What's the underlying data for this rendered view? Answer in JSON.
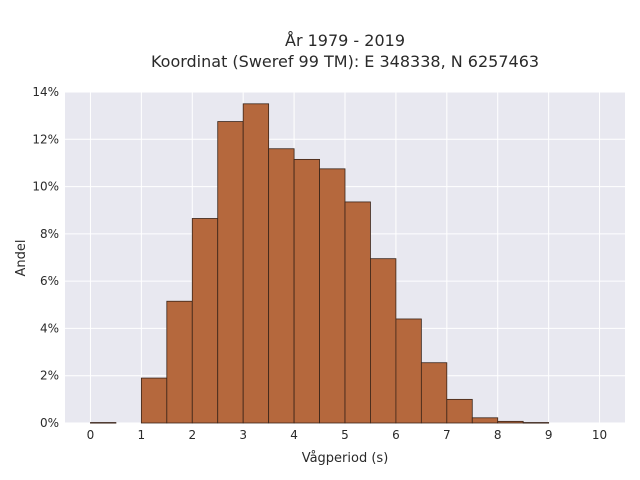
{
  "chart_data": {
    "type": "bar",
    "title_line1": "År 1979 - 2019",
    "title_line2": "Koordinat (Sweref 99 TM): E 348338, N 6257463",
    "xlabel": "Vågperiod (s)",
    "ylabel": "Andel",
    "xlim": [
      -0.5,
      10.5
    ],
    "ylim": [
      0,
      14
    ],
    "x_ticks": [
      0,
      1,
      2,
      3,
      4,
      5,
      6,
      7,
      8,
      9,
      10
    ],
    "x_tick_labels": [
      "0",
      "1",
      "2",
      "3",
      "4",
      "5",
      "6",
      "7",
      "8",
      "9",
      "10"
    ],
    "y_ticks": [
      0,
      2,
      4,
      6,
      8,
      10,
      12,
      14
    ],
    "y_tick_labels": [
      "0%",
      "2%",
      "4%",
      "6%",
      "8%",
      "10%",
      "12%",
      "14%"
    ],
    "bin_width": 0.5,
    "bin_starts": [
      0,
      0.5,
      1,
      1.5,
      2,
      2.5,
      3,
      3.5,
      4,
      4.5,
      5,
      5.5,
      6,
      6.5,
      7,
      7.5,
      8,
      8.5,
      9,
      9.5
    ],
    "values": [
      0.02,
      0,
      1.9,
      5.15,
      8.65,
      12.75,
      13.5,
      11.6,
      11.15,
      10.75,
      9.35,
      6.95,
      4.4,
      2.55,
      1.0,
      0.22,
      0.07,
      0.02,
      0,
      0
    ],
    "grid": true,
    "colors": {
      "bar_fill": "#b5683d",
      "bar_stroke": "#3a2418",
      "plot_bg": "#e8e8f0",
      "grid": "#ffffff"
    }
  }
}
